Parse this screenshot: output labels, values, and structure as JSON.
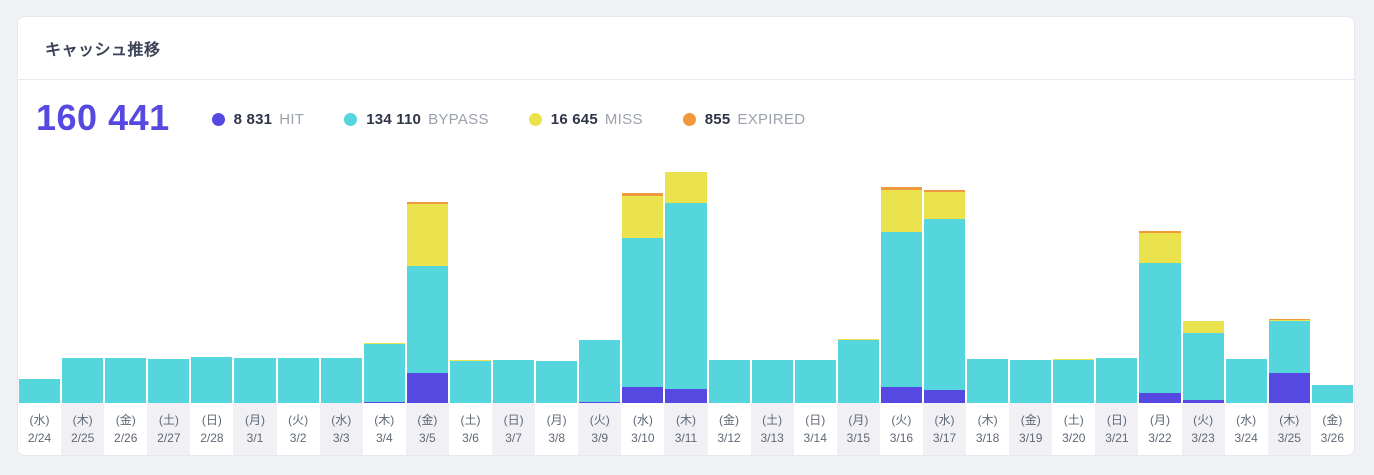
{
  "card": {
    "title": "キャッシュ推移",
    "total": "160 441"
  },
  "legend": {
    "items": [
      {
        "key": "hit",
        "value": "8 831",
        "label": "HIT",
        "color": "#5649e1"
      },
      {
        "key": "bypass",
        "value": "134 110",
        "label": "BYPASS",
        "color": "#55d5dc"
      },
      {
        "key": "miss",
        "value": "16 645",
        "label": "MISS",
        "color": "#ebe34d"
      },
      {
        "key": "expired",
        "value": "855",
        "label": "EXPIRED",
        "color": "#f0993c"
      }
    ]
  },
  "chart_data": {
    "type": "bar",
    "stacked": true,
    "title": "キャッシュ推移",
    "xlabel": "",
    "ylabel": "",
    "grid": false,
    "legend_position": "top",
    "ylim": [
      0,
      16500
    ],
    "categories": [
      "2/24",
      "2/25",
      "2/26",
      "2/27",
      "2/28",
      "3/1",
      "3/2",
      "3/3",
      "3/4",
      "3/5",
      "3/6",
      "3/7",
      "3/8",
      "3/9",
      "3/10",
      "3/11",
      "3/12",
      "3/13",
      "3/14",
      "3/15",
      "3/16",
      "3/17",
      "3/18",
      "3/19",
      "3/20",
      "3/21",
      "3/22",
      "3/23",
      "3/24",
      "3/25",
      "3/26"
    ],
    "weekdays": [
      "(水)",
      "(木)",
      "(金)",
      "(土)",
      "(日)",
      "(月)",
      "(火)",
      "(水)",
      "(木)",
      "(金)",
      "(土)",
      "(日)",
      "(月)",
      "(火)",
      "(水)",
      "(木)",
      "(金)",
      "(土)",
      "(日)",
      "(月)",
      "(火)",
      "(水)",
      "(木)",
      "(金)",
      "(土)",
      "(日)",
      "(月)",
      "(火)",
      "(水)",
      "(木)",
      "(金)"
    ],
    "series": [
      {
        "name": "HIT",
        "color": "#5649e1",
        "total": 8831,
        "values": [
          0,
          0,
          0,
          0,
          0,
          0,
          0,
          0,
          71,
          1960,
          0,
          0,
          0,
          70,
          1030,
          930,
          0,
          0,
          0,
          0,
          1090,
          860,
          0,
          0,
          0,
          0,
          660,
          200,
          0,
          1960,
          0
        ]
      },
      {
        "name": "BYPASS",
        "color": "#55d5dc",
        "total": 134110,
        "values": [
          1590,
          2950,
          2950,
          2880,
          3010,
          2950,
          2950,
          2950,
          3830,
          7070,
          2780,
          2840,
          2780,
          4090,
          9850,
          12290,
          2840,
          2840,
          2840,
          4160,
          10240,
          11300,
          2910,
          2840,
          2850,
          2970,
          8590,
          4430,
          2910,
          3440,
          1190
        ]
      },
      {
        "name": "MISS",
        "color": "#ebe34d",
        "total": 16645,
        "values": [
          0,
          0,
          0,
          0,
          0,
          0,
          0,
          0,
          70,
          4100,
          60,
          0,
          0,
          0,
          2800,
          2050,
          0,
          0,
          0,
          70,
          2800,
          1790,
          0,
          0,
          60,
          0,
          2000,
          790,
          0,
          55,
          0
        ]
      },
      {
        "name": "EXPIRED",
        "color": "#f0993c",
        "total": 855,
        "values": [
          0,
          0,
          0,
          0,
          0,
          0,
          0,
          0,
          0,
          130,
          0,
          0,
          0,
          0,
          215,
          0,
          0,
          0,
          0,
          0,
          210,
          130,
          0,
          0,
          0,
          0,
          130,
          0,
          0,
          40,
          0
        ]
      }
    ]
  },
  "colors": {
    "page_bg": "#f0f1f5",
    "card_bg": "#ffffff",
    "card_border": "#e7e8ee",
    "title_text": "#3b4256",
    "total_text": "#5649e1",
    "legend_value_text": "#2f3548",
    "legend_label_text": "#9ba1ad",
    "axis_text": "#5f6875",
    "axis_alt_bg": "#f1f1f5"
  }
}
